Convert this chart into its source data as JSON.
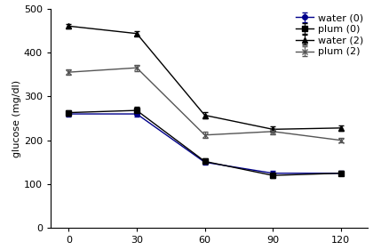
{
  "x": [
    0,
    30,
    60,
    90,
    120
  ],
  "series": [
    {
      "label": "water (0)",
      "y": [
        260,
        260,
        150,
        125,
        125
      ],
      "yerr": [
        6,
        6,
        6,
        5,
        5
      ],
      "color": "#00008B",
      "marker": "o",
      "markersize": 4,
      "linestyle": "-",
      "markerfilled": true
    },
    {
      "label": "plum (0)",
      "y": [
        263,
        268,
        152,
        120,
        125
      ],
      "yerr": [
        6,
        8,
        6,
        5,
        5
      ],
      "color": "#000000",
      "marker": "s",
      "markersize": 4,
      "linestyle": "-",
      "markerfilled": true
    },
    {
      "label": "water (2)",
      "y": [
        460,
        443,
        257,
        225,
        228
      ],
      "yerr": [
        5,
        5,
        7,
        6,
        6
      ],
      "color": "#000000",
      "marker": "^",
      "markersize": 5,
      "linestyle": "-",
      "markerfilled": true
    },
    {
      "label": "plum (2)",
      "y": [
        355,
        365,
        212,
        220,
        200
      ],
      "yerr": [
        6,
        7,
        7,
        6,
        5
      ],
      "color": "#555555",
      "marker": "x",
      "markersize": 5,
      "linestyle": "-",
      "markerfilled": false
    }
  ],
  "ylabel": "glucose (mg/dl)",
  "ylim": [
    0,
    500
  ],
  "yticks": [
    0,
    100,
    200,
    300,
    400,
    500
  ],
  "xticks": [
    0,
    30,
    60,
    90,
    120
  ],
  "xlim": [
    -8,
    132
  ],
  "legend_fontsize": 8,
  "axis_fontsize": 8,
  "tick_fontsize": 8,
  "background_color": "#ffffff",
  "capsize": 2
}
